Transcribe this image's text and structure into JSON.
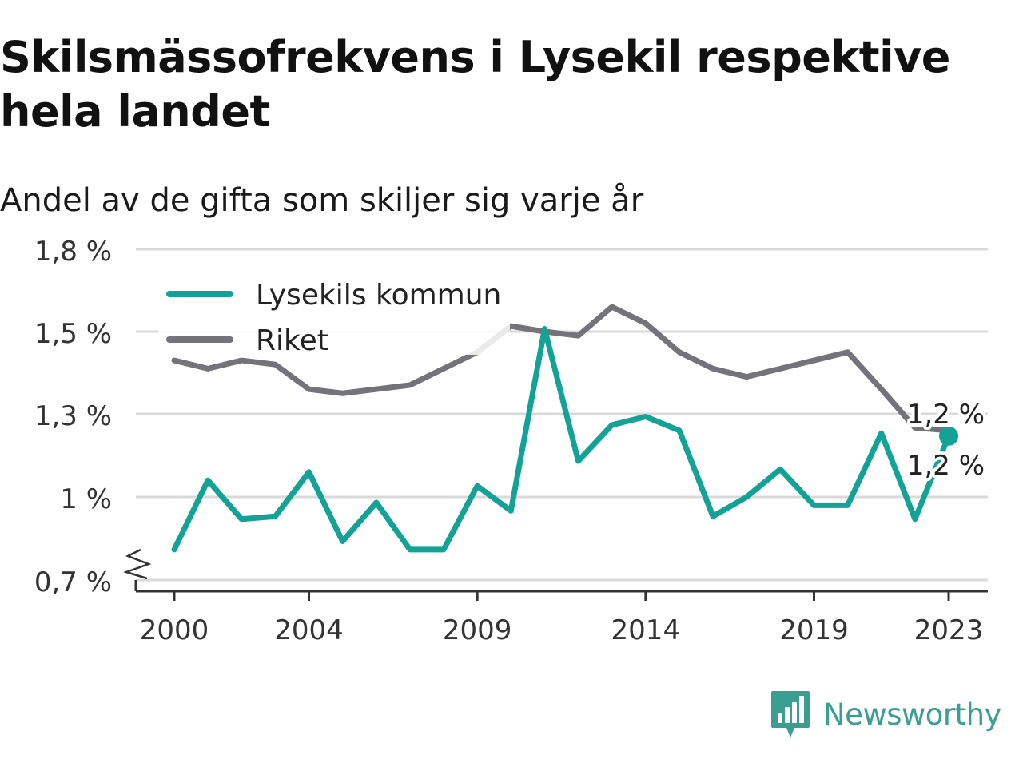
{
  "title": "Skilsmässofrekvens i Lysekil respektive hela landet",
  "subtitle": "Andel av de gifta som skiljer sig varje år",
  "brand": {
    "name": "Newsworthy",
    "logo_icon": "bar-chart-speech-bubble-icon",
    "color": "#3a9e91"
  },
  "chart_data": {
    "type": "line",
    "x": [
      2000,
      2001,
      2002,
      2003,
      2004,
      2005,
      2006,
      2007,
      2008,
      2009,
      2010,
      2011,
      2012,
      2013,
      2014,
      2015,
      2016,
      2017,
      2018,
      2019,
      2020,
      2021,
      2022,
      2023
    ],
    "series": [
      {
        "name": "Lysekils kommun",
        "color": "#12a396",
        "values": [
          0.81,
          1.06,
          0.92,
          0.93,
          1.09,
          0.84,
          0.98,
          0.81,
          0.81,
          1.04,
          0.95,
          1.51,
          1.13,
          1.26,
          1.29,
          1.24,
          0.93,
          1.0,
          1.1,
          0.97,
          0.97,
          1.23,
          0.92,
          1.22
        ]
      },
      {
        "name": "Riket",
        "color": "#74737a",
        "values": [
          1.43,
          1.41,
          1.43,
          1.42,
          1.36,
          1.35,
          1.36,
          1.37,
          1.41,
          1.45,
          1.52,
          1.5,
          1.49,
          1.59,
          1.53,
          1.45,
          1.41,
          1.39,
          1.41,
          1.43,
          1.45,
          1.36,
          1.25,
          1.24
        ]
      }
    ],
    "y_ticks": [
      0.7,
      1.0,
      1.3,
      1.5,
      1.8
    ],
    "y_tick_labels": [
      "0,7 %",
      "1 %",
      "1,3 %",
      "1,5 %",
      "1,8 %"
    ],
    "x_ticks": [
      2000,
      2004,
      2009,
      2014,
      2019,
      2023
    ],
    "x_tick_labels": [
      "2000",
      "2004",
      "2009",
      "2014",
      "2019",
      "2023"
    ],
    "end_labels": {
      "Riket": "1,2 %",
      "Lysekils kommun": "1,2 %"
    },
    "ylim": [
      0.7,
      1.8
    ],
    "xlim": [
      2000,
      2023
    ],
    "grid": true,
    "legend_position": "top-left",
    "axis_break": true
  }
}
